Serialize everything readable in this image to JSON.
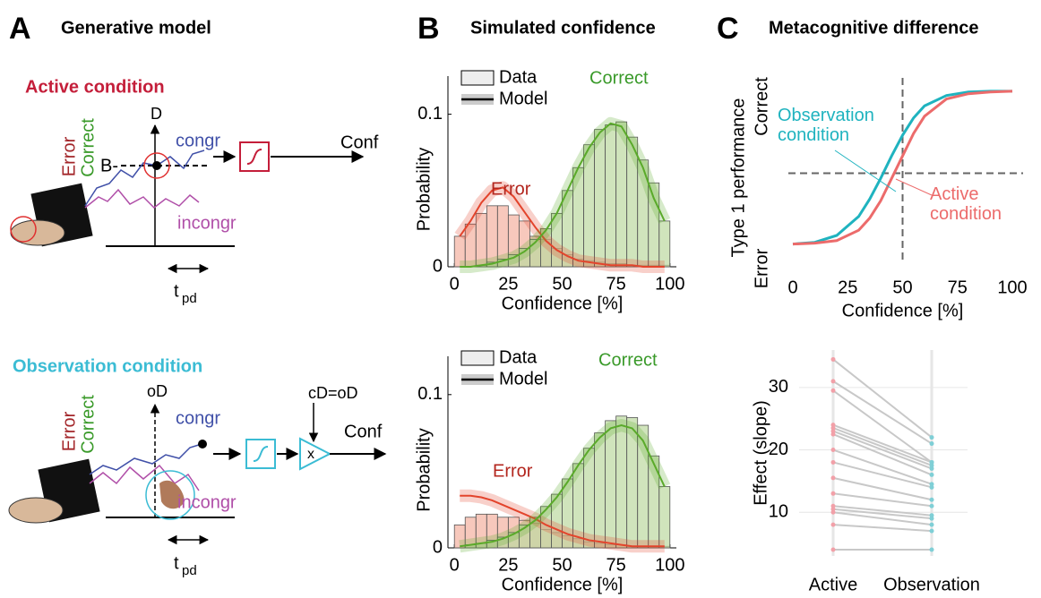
{
  "panels": [
    {
      "letter": "A",
      "title": "Generative model"
    },
    {
      "letter": "B",
      "title": "Simulated confidence"
    },
    {
      "letter": "C",
      "title": "Metacognitive difference"
    }
  ],
  "diagram": {
    "active": {
      "title": "Active condition",
      "error": "Error",
      "correct": "Correct",
      "axis": "D",
      "bound": "B-",
      "congr": "congr",
      "incongr": "incongr",
      "output": "Conf",
      "time": "t",
      "time_sub": "pd"
    },
    "observation": {
      "title": "Observation condition",
      "error": "Error",
      "correct": "Correct",
      "axis": "oD",
      "gain": "cD=oD",
      "gain_symbol": "x",
      "congr": "congr",
      "incongr": "incongr",
      "output": "Conf",
      "time": "t",
      "time_sub": "pd"
    }
  },
  "chart_data": [
    {
      "type": "histogram",
      "xlabel": "Confidence [%]",
      "ylabel": "Probability",
      "bins": [
        0,
        5,
        10,
        15,
        20,
        25,
        30,
        35,
        40,
        45,
        50,
        55,
        60,
        65,
        70,
        75,
        80,
        85,
        90,
        95,
        100
      ],
      "x": [
        2.5,
        7.5,
        12.5,
        17.5,
        22.5,
        27.5,
        32.5,
        37.5,
        42.5,
        47.5,
        52.5,
        57.5,
        62.5,
        67.5,
        72.5,
        77.5,
        82.5,
        87.5,
        92.5,
        97.5
      ],
      "xlim": [
        -3,
        103
      ],
      "ylim": [
        0,
        0.125
      ],
      "xticks": [
        0,
        25,
        50,
        75,
        100
      ],
      "yticks": [
        0,
        0.1
      ],
      "legend": [
        "Data",
        "Model"
      ],
      "legend_corner": "top-left",
      "series": [
        {
          "name": "Error",
          "color": "#f4b0a0",
          "line_color": "#e3442c",
          "label_color": "#b3261e",
          "values": [
            0.02,
            0.028,
            0.035,
            0.04,
            0.04,
            0.034,
            0.03,
            0.02,
            0.018,
            0.012,
            0.008,
            0.005,
            0.004,
            0.003,
            0.002,
            0.002,
            0.001,
            0.001,
            0.001,
            0.001
          ],
          "model": [
            0.02,
            0.03,
            0.042,
            0.05,
            0.052,
            0.046,
            0.036,
            0.026,
            0.017,
            0.011,
            0.007,
            0.004,
            0.003,
            0.002,
            0.001,
            0.001,
            0.001,
            0,
            0,
            0
          ]
        },
        {
          "name": "Correct",
          "color": "#bcd9a0",
          "line_color": "#5aaa2a",
          "label_color": "#3a9a2a",
          "values": [
            0,
            0,
            0.001,
            0.003,
            0.005,
            0.008,
            0.012,
            0.018,
            0.025,
            0.035,
            0.05,
            0.065,
            0.08,
            0.09,
            0.093,
            0.095,
            0.085,
            0.07,
            0.055,
            0.03
          ],
          "model": [
            0,
            0,
            0.001,
            0.002,
            0.004,
            0.006,
            0.01,
            0.016,
            0.024,
            0.035,
            0.05,
            0.065,
            0.078,
            0.088,
            0.094,
            0.092,
            0.08,
            0.065,
            0.045,
            0.03
          ]
        }
      ]
    },
    {
      "type": "histogram",
      "xlabel": "Confidence [%]",
      "ylabel": "Probability",
      "bins": [
        0,
        5,
        10,
        15,
        20,
        25,
        30,
        35,
        40,
        45,
        50,
        55,
        60,
        65,
        70,
        75,
        80,
        85,
        90,
        95,
        100
      ],
      "x": [
        2.5,
        7.5,
        12.5,
        17.5,
        22.5,
        27.5,
        32.5,
        37.5,
        42.5,
        47.5,
        52.5,
        57.5,
        62.5,
        67.5,
        72.5,
        77.5,
        82.5,
        87.5,
        92.5,
        97.5
      ],
      "xlim": [
        -3,
        103
      ],
      "ylim": [
        0,
        0.125
      ],
      "xticks": [
        0,
        25,
        50,
        75,
        100
      ],
      "yticks": [
        0,
        0.1
      ],
      "legend": [
        "Data",
        "Model"
      ],
      "legend_corner": "top-left",
      "series": [
        {
          "name": "Error",
          "color": "#f4b0a0",
          "line_color": "#e3442c",
          "label_color": "#b3261e",
          "values": [
            0.015,
            0.02,
            0.022,
            0.022,
            0.02,
            0.02,
            0.018,
            0.016,
            0.012,
            0.01,
            0.008,
            0.006,
            0.004,
            0.003,
            0.002,
            0.002,
            0.001,
            0.001,
            0.001,
            0.001
          ],
          "model": [
            0.034,
            0.034,
            0.033,
            0.031,
            0.028,
            0.025,
            0.022,
            0.019,
            0.015,
            0.012,
            0.009,
            0.007,
            0.005,
            0.004,
            0.003,
            0.002,
            0.001,
            0.001,
            0.001,
            0.001
          ]
        },
        {
          "name": "Correct",
          "color": "#bcd9a0",
          "line_color": "#5aaa2a",
          "label_color": "#3a9a2a",
          "values": [
            0,
            0.002,
            0.003,
            0.005,
            0.007,
            0.01,
            0.015,
            0.02,
            0.027,
            0.035,
            0.045,
            0.055,
            0.065,
            0.075,
            0.083,
            0.086,
            0.085,
            0.08,
            0.06,
            0.04
          ],
          "model": [
            0.001,
            0.002,
            0.003,
            0.004,
            0.006,
            0.009,
            0.013,
            0.018,
            0.025,
            0.033,
            0.043,
            0.054,
            0.064,
            0.072,
            0.078,
            0.08,
            0.078,
            0.07,
            0.055,
            0.04
          ]
        }
      ]
    },
    {
      "type": "line",
      "xlabel": "Confidence [%]",
      "ylabel": "Type 1 performance",
      "x": [
        0,
        10,
        20,
        30,
        35,
        40,
        45,
        50,
        55,
        60,
        70,
        80,
        90,
        100
      ],
      "xlim": [
        0,
        100
      ],
      "ylim": [
        0,
        1
      ],
      "xticks": [
        0,
        25,
        50,
        75,
        100
      ],
      "yticks": [
        {
          "value": 0,
          "label": "Error"
        },
        {
          "value": 1,
          "label": "Correct"
        }
      ],
      "ref_x": 50,
      "ref_y": 0.5,
      "series": [
        {
          "name": "Observation condition",
          "color": "#1fb3bf",
          "values": [
            0.09,
            0.1,
            0.14,
            0.25,
            0.35,
            0.47,
            0.6,
            0.72,
            0.82,
            0.89,
            0.95,
            0.97,
            0.975,
            0.975
          ]
        },
        {
          "name": "Active condition",
          "color": "#ec6b6b",
          "values": [
            0.09,
            0.095,
            0.11,
            0.17,
            0.24,
            0.34,
            0.47,
            0.6,
            0.73,
            0.83,
            0.93,
            0.96,
            0.97,
            0.975
          ]
        }
      ]
    },
    {
      "type": "slope",
      "ylabel": "Effect (slope)",
      "categories": [
        "Active",
        "Observation"
      ],
      "ylim": [
        3,
        36
      ],
      "yticks": [
        10,
        20,
        30
      ],
      "point_colors": [
        "#f2a0a8",
        "#7fcfd6"
      ],
      "line_color": "#c8c8c8",
      "series": [
        {
          "values": [
            34.5,
            22
          ]
        },
        {
          "values": [
            31,
            21
          ]
        },
        {
          "values": [
            29.5,
            18
          ]
        },
        {
          "values": [
            24,
            18
          ]
        },
        {
          "values": [
            23.5,
            17.5
          ]
        },
        {
          "values": [
            23,
            17
          ]
        },
        {
          "values": [
            22.5,
            16
          ]
        },
        {
          "values": [
            20,
            14.5
          ]
        },
        {
          "values": [
            18,
            14
          ]
        },
        {
          "values": [
            15.5,
            12
          ]
        },
        {
          "values": [
            13,
            11
          ]
        },
        {
          "values": [
            11,
            9.5
          ]
        },
        {
          "values": [
            10.5,
            9
          ]
        },
        {
          "values": [
            10,
            8
          ]
        },
        {
          "values": [
            8,
            7
          ]
        },
        {
          "values": [
            4,
            4
          ]
        }
      ]
    }
  ]
}
